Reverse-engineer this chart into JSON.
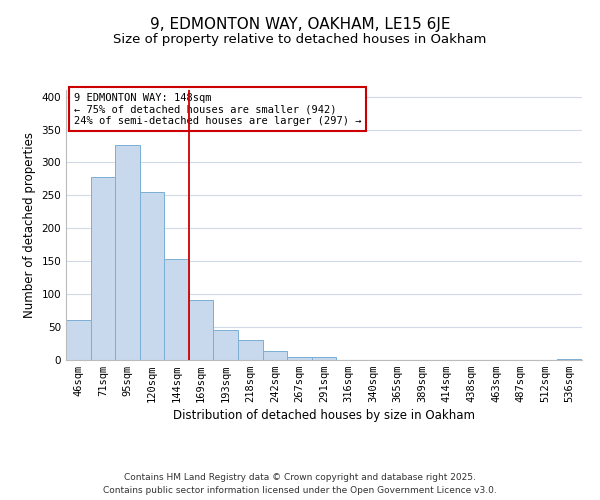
{
  "title": "9, EDMONTON WAY, OAKHAM, LE15 6JE",
  "subtitle": "Size of property relative to detached houses in Oakham",
  "xlabel": "Distribution of detached houses by size in Oakham",
  "ylabel": "Number of detached properties",
  "categories": [
    "46sqm",
    "71sqm",
    "95sqm",
    "120sqm",
    "144sqm",
    "169sqm",
    "193sqm",
    "218sqm",
    "242sqm",
    "267sqm",
    "291sqm",
    "316sqm",
    "340sqm",
    "365sqm",
    "389sqm",
    "414sqm",
    "438sqm",
    "463sqm",
    "487sqm",
    "512sqm",
    "536sqm"
  ],
  "values": [
    60,
    278,
    327,
    255,
    153,
    91,
    46,
    30,
    13,
    5,
    5,
    0,
    0,
    0,
    0,
    0,
    0,
    0,
    0,
    0,
    1
  ],
  "bar_color": "#c8d9ee",
  "bar_edge_color": "#7aafd4",
  "vline_color": "#cc0000",
  "annotation_text": "9 EDMONTON WAY: 148sqm\n← 75% of detached houses are smaller (942)\n24% of semi-detached houses are larger (297) →",
  "annotation_box_color": "#ffffff",
  "annotation_box_edge_color": "#cc0000",
  "ylim": [
    0,
    410
  ],
  "yticks": [
    0,
    50,
    100,
    150,
    200,
    250,
    300,
    350,
    400
  ],
  "footer_line1": "Contains HM Land Registry data © Crown copyright and database right 2025.",
  "footer_line2": "Contains public sector information licensed under the Open Government Licence v3.0.",
  "background_color": "#ffffff",
  "grid_color": "#d0dae8",
  "title_fontsize": 11,
  "subtitle_fontsize": 9.5,
  "axis_label_fontsize": 8.5,
  "tick_fontsize": 7.5,
  "footer_fontsize": 6.5,
  "annotation_fontsize": 7.5
}
